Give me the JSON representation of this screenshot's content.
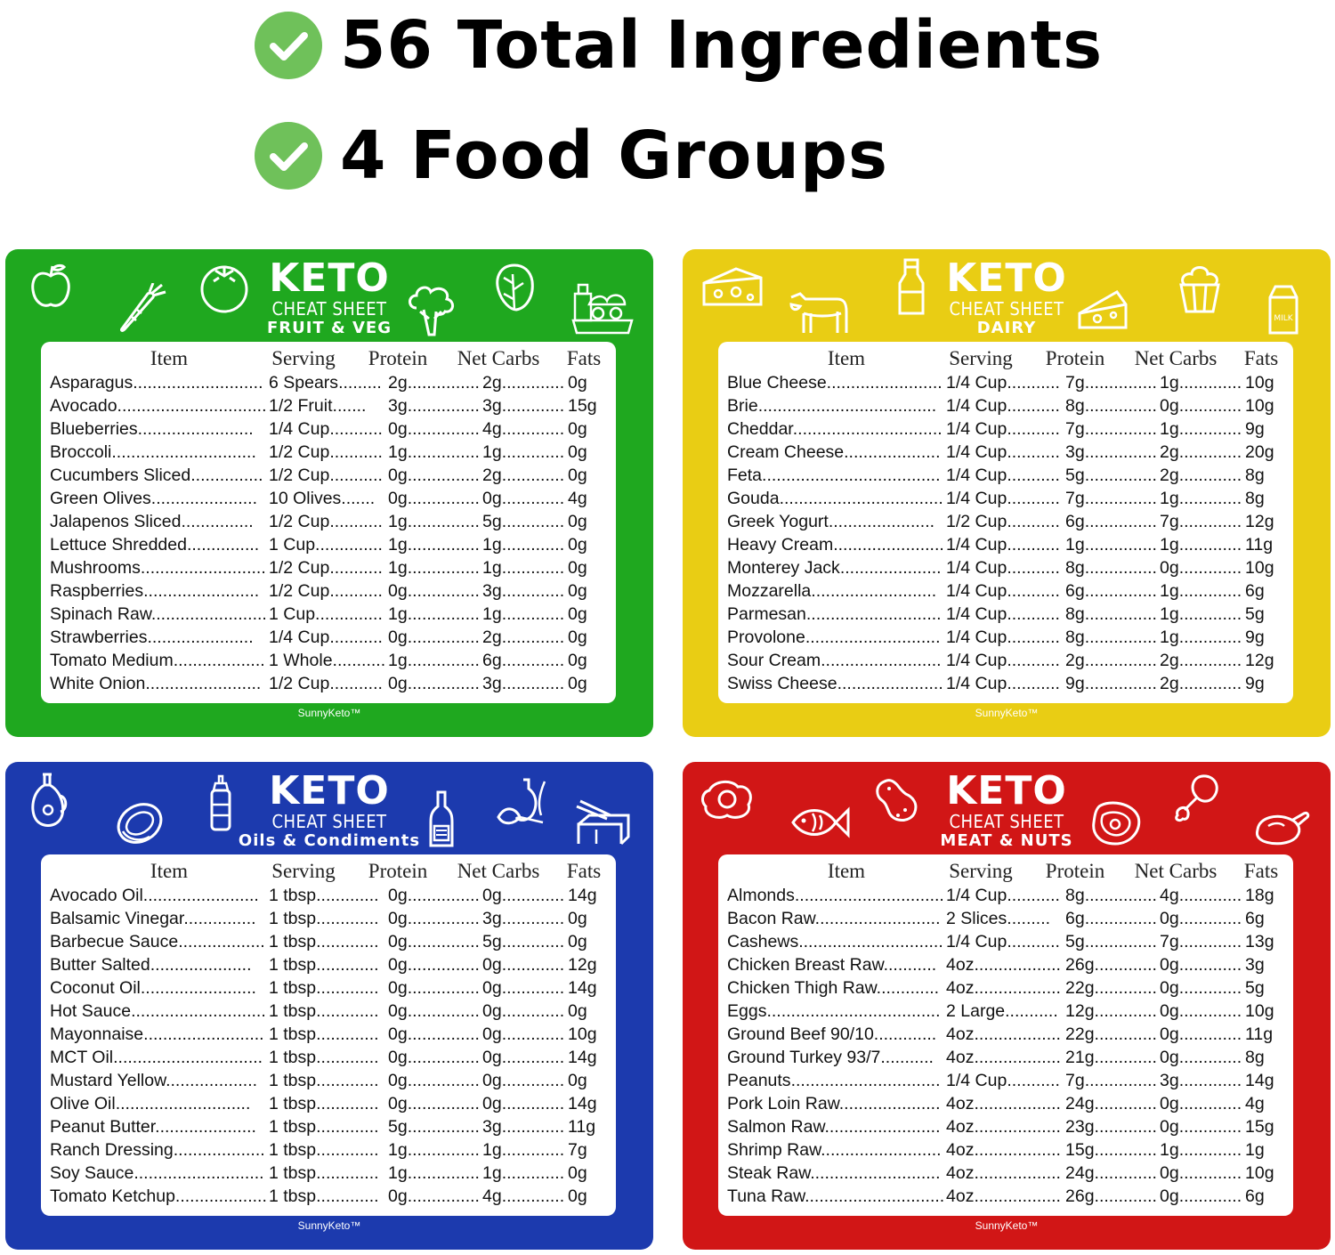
{
  "headlines": [
    {
      "text": "56 Total Ingredients",
      "icon": "check-circle-icon"
    },
    {
      "text": "4 Food Groups",
      "icon": "check-circle-icon"
    }
  ],
  "colors": {
    "check": "#6fc15a",
    "green": "#1fa81f",
    "yellow": "#e9cd14",
    "blue": "#1c3aae",
    "red": "#d11616"
  },
  "cards": [
    {
      "id": "fruit-veg",
      "color": "green",
      "keto": "KETO",
      "cheat": "CHEAT SHEET",
      "group": "FRUIT & VEG",
      "brand": "SunnyKeto™",
      "icons": [
        "apple-icon",
        "carrot-icon",
        "tomato-icon",
        "broccoli-icon",
        "lettuce-icon",
        "groceries-icon"
      ],
      "headers": [
        "Item",
        "Serving",
        "Protein",
        "Net Carbs",
        "Fats"
      ],
      "rows": [
        [
          "Asparagus",
          "6 Spears",
          "2g",
          "2g",
          "0g"
        ],
        [
          "Avocado",
          "1/2 Fruit",
          "3g",
          "3g",
          "15g"
        ],
        [
          "Blueberries",
          "1/4 Cup",
          "0g",
          "4g",
          "0g"
        ],
        [
          "Broccoli",
          "1/2 Cup",
          "1g",
          "1g",
          "0g"
        ],
        [
          "Cucumbers Sliced",
          "1/2 Cup",
          "0g",
          "2g",
          "0g"
        ],
        [
          "Green Olives",
          "10 Olives",
          "0g",
          "0g",
          "4g"
        ],
        [
          "Jalapenos Sliced",
          "1/2 Cup",
          "1g",
          "5g",
          "0g"
        ],
        [
          "Lettuce Shredded",
          "1 Cup",
          "1g",
          "1g",
          "0g"
        ],
        [
          "Mushrooms",
          "1/2 Cup",
          "1g",
          "1g",
          "0g"
        ],
        [
          "Raspberries",
          "1/2 Cup",
          "0g",
          "3g",
          "0g"
        ],
        [
          "Spinach Raw",
          "1 Cup",
          "1g",
          "1g",
          "0g"
        ],
        [
          "Strawberries",
          "1/4 Cup",
          "0g",
          "2g",
          "0g"
        ],
        [
          "Tomato Medium",
          "1 Whole",
          "1g",
          "6g",
          "0g"
        ],
        [
          "White Onion",
          "1/2 Cup",
          "0g",
          "3g",
          "0g"
        ]
      ]
    },
    {
      "id": "dairy",
      "color": "yellow",
      "keto": "KETO",
      "cheat": "CHEAT SHEET",
      "group": "DAIRY",
      "brand": "SunnyKeto™",
      "icons": [
        "cheese-icon",
        "cow-icon",
        "milk-bottle-icon",
        "cheese-wedge-icon",
        "cupcake-icon",
        "milk-carton-icon"
      ],
      "milk_label": "MILK",
      "headers": [
        "Item",
        "Serving",
        "Protein",
        "Net Carbs",
        "Fats"
      ],
      "rows": [
        [
          "Blue Cheese",
          "1/4 Cup",
          "7g",
          "1g",
          "10g"
        ],
        [
          "Brie",
          "1/4 Cup",
          "8g",
          "0g",
          "10g"
        ],
        [
          "Cheddar",
          "1/4 Cup",
          "7g",
          "1g",
          "9g"
        ],
        [
          "Cream Cheese",
          "1/4 Cup",
          "3g",
          "2g",
          "20g"
        ],
        [
          "Feta",
          "1/4 Cup",
          "5g",
          "2g",
          "8g"
        ],
        [
          "Gouda",
          "1/4 Cup",
          "7g",
          "1g",
          "8g"
        ],
        [
          "Greek Yogurt",
          "1/2 Cup",
          "6g",
          "7g",
          "12g"
        ],
        [
          "Heavy Cream",
          "1/4 Cup",
          "1g",
          "1g",
          "11g"
        ],
        [
          "Monterey Jack",
          "1/4 Cup",
          "8g",
          "0g",
          "10g"
        ],
        [
          "Mozzarella",
          "1/4 Cup",
          "6g",
          "1g",
          "6g"
        ],
        [
          "Parmesan",
          "1/4 Cup",
          "8g",
          "1g",
          "5g"
        ],
        [
          "Provolone",
          "1/4 Cup",
          "8g",
          "1g",
          "9g"
        ],
        [
          "Sour Cream",
          "1/4 Cup",
          "2g",
          "2g",
          "12g"
        ],
        [
          "Swiss Cheese",
          "1/4 Cup",
          "9g",
          "2g",
          "9g"
        ]
      ]
    },
    {
      "id": "oils",
      "color": "blue",
      "keto": "KETO",
      "cheat": "CHEAT SHEET",
      "group": "Oils & Condiments",
      "brand": "SunnyKeto™",
      "icons": [
        "oil-jug-icon",
        "avocado-icon",
        "sauce-bottle-icon",
        "ketchup-bottle-icon",
        "olive-oil-icon",
        "butter-icon"
      ],
      "headers": [
        "Item",
        "Serving",
        "Protein",
        "Net Carbs",
        "Fats"
      ],
      "rows": [
        [
          "Avocado Oil",
          "1 tbsp",
          "0g",
          "0g",
          "14g"
        ],
        [
          "Balsamic Vinegar",
          "1 tbsp",
          "0g",
          "3g",
          "0g"
        ],
        [
          "Barbecue Sauce",
          "1 tbsp",
          "0g",
          "5g",
          "0g"
        ],
        [
          "Butter Salted",
          "1 tbsp",
          "0g",
          "0g",
          "12g"
        ],
        [
          "Coconut Oil",
          "1 tbsp",
          "0g",
          "0g",
          "14g"
        ],
        [
          "Hot Sauce",
          "1 tbsp",
          "0g",
          "0g",
          "0g"
        ],
        [
          "Mayonnaise",
          "1 tbsp",
          "0g",
          "0g",
          "10g"
        ],
        [
          "MCT Oil",
          "1 tbsp",
          "0g",
          "0g",
          "14g"
        ],
        [
          "Mustard Yellow",
          "1 tbsp",
          "0g",
          "0g",
          "0g"
        ],
        [
          "Olive Oil",
          "1 tbsp",
          "0g",
          "0g",
          "14g"
        ],
        [
          "Peanut Butter",
          "1 tbsp",
          "5g",
          "3g",
          "11g"
        ],
        [
          "Ranch Dressing",
          "1 tbsp",
          "1g",
          "1g",
          "7g"
        ],
        [
          "Soy Sauce",
          "1 tbsp",
          "1g",
          "1g",
          "0g"
        ],
        [
          "Tomato Ketchup",
          "1 tbsp",
          "0g",
          "4g",
          "0g"
        ]
      ]
    },
    {
      "id": "meat-nuts",
      "color": "red",
      "keto": "KETO",
      "cheat": "CHEAT SHEET",
      "group": "MEAT & NUTS",
      "brand": "SunnyKeto™",
      "icons": [
        "egg-icon",
        "fish-icon",
        "peanut-icon",
        "steak-icon",
        "drumstick-icon",
        "roast-chicken-icon"
      ],
      "headers": [
        "Item",
        "Serving",
        "Protein",
        "Net Carbs",
        "Fats"
      ],
      "rows": [
        [
          "Almonds",
          "1/4 Cup",
          "8g",
          "4g",
          "18g"
        ],
        [
          "Bacon Raw",
          "2 Slices",
          "6g",
          "0g",
          "6g"
        ],
        [
          "Cashews",
          "1/4 Cup",
          "5g",
          "7g",
          "13g"
        ],
        [
          "Chicken Breast Raw",
          "4oz",
          "26g",
          "0g",
          "3g"
        ],
        [
          "Chicken Thigh Raw",
          "4oz",
          "22g",
          "0g",
          "5g"
        ],
        [
          "Eggs",
          "2 Large",
          "12g",
          "0g",
          "10g"
        ],
        [
          "Ground Beef 90/10",
          "4oz",
          "22g",
          "0g",
          "11g"
        ],
        [
          "Ground Turkey 93/7",
          "4oz",
          "21g",
          "0g",
          "8g"
        ],
        [
          "Peanuts",
          "1/4 Cup",
          "7g",
          "3g",
          "14g"
        ],
        [
          "Pork Loin Raw",
          "4oz",
          "24g",
          "0g",
          "4g"
        ],
        [
          "Salmon Raw",
          "4oz",
          "23g",
          "0g",
          "15g"
        ],
        [
          "Shrimp Raw",
          "4oz",
          "15g",
          "1g",
          "1g"
        ],
        [
          "Steak Raw",
          "4oz",
          "24g",
          "0g",
          "10g"
        ],
        [
          "Tuna Raw",
          "4oz",
          "26g",
          "0g",
          "6g"
        ]
      ]
    }
  ]
}
